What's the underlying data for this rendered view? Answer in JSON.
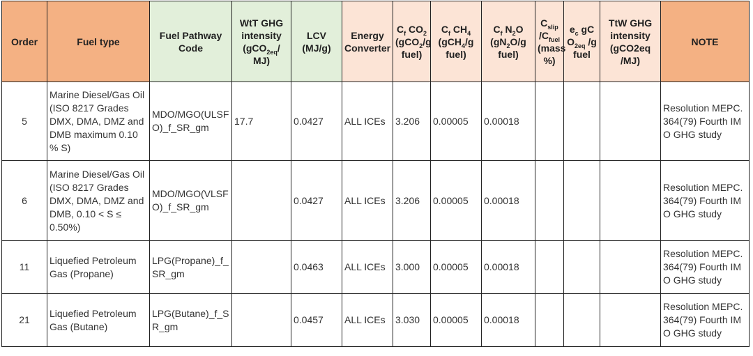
{
  "table": {
    "headers": [
      [
        "Order"
      ],
      [
        "Fuel type"
      ],
      [
        "Fuel Pathway Code"
      ],
      [
        "WtT GHG intensity (gCO",
        "2eq",
        "/ MJ)"
      ],
      [
        "LCV (MJ/g)"
      ],
      [
        "Energy Converter"
      ],
      [
        "C",
        "f",
        " CO",
        "2",
        " (gCO",
        "2",
        "/g fuel)"
      ],
      [
        "C",
        "f",
        " CH",
        "4",
        " (gCH",
        "4",
        "/g fuel)"
      ],
      [
        "C",
        "f",
        " N",
        "2",
        "O (gN",
        "2",
        "O/g fuel)"
      ],
      [
        "C",
        "slip",
        " /C",
        "fuel",
        " (mass %)"
      ],
      [
        "e",
        "c",
        " gC O",
        "2eq",
        " /g fuel"
      ],
      [
        "TtW GHG intensity (gCO2eq /MJ)"
      ],
      [
        "NOTE"
      ]
    ],
    "rows": [
      [
        "5",
        "Marine Diesel/Gas Oil (ISO 8217 Grades DMX, DMA, DMZ and DMB maximum 0.10 % S)",
        "MDO/MGO(ULSFO)_f_SR_gm",
        "17.7",
        "0.0427",
        "ALL ICEs",
        "3.206",
        "0.00005",
        "0.00018",
        null,
        null,
        null,
        "Resolution MEPC.364(79) Fourth IMO GHG study"
      ],
      [
        "6",
        "Marine Diesel/Gas Oil (ISO 8217 Grades DMX, DMA, DMZ and DMB, 0.10 < S ≤ 0.50%)",
        "MDO/MGO(VLSFO)_f_SR_gm",
        null,
        "0.0427",
        "ALL ICEs",
        "3.206",
        "0.00005",
        "0.00018",
        null,
        null,
        null,
        "Resolution MEPC.364(79) Fourth IMO GHG study"
      ],
      [
        "11",
        "Liquefied Petroleum Gas (Propane)",
        "LPG(Propane)_f_SR_gm",
        null,
        "0.0463",
        "ALL ICEs",
        "3.000",
        "0.00005",
        "0.00018",
        null,
        null,
        null,
        "Resolution MEPC.364(79) Fourth IMO GHG study"
      ],
      [
        "21",
        "Liquefied Petroleum Gas (Butane)",
        "LPG(Butane)_f_SR_gm",
        null,
        "0.0457",
        "ALL ICEs",
        "3.030",
        "0.00005",
        "0.00018",
        null,
        null,
        null,
        "Resolution MEPC.364(79) Fourth IMO GHG study"
      ]
    ]
  }
}
